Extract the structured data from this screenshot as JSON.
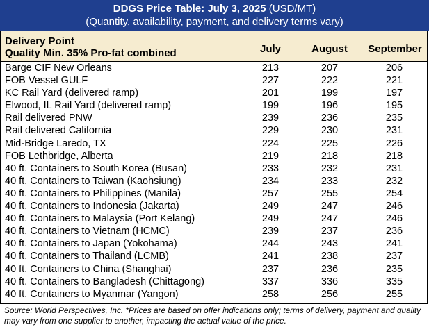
{
  "banner": {
    "title_bold": "DDGS Price Table: July 3, 2025",
    "title_rest": " (USD/MT)",
    "subtitle": "(Quantity, availability, payment, and delivery terms vary)",
    "bg_color": "#1f3f8f"
  },
  "header": {
    "delivery_point": "Delivery Point",
    "quality": "Quality Min. 35% Pro-fat combined",
    "months": [
      "July",
      "August",
      "September"
    ],
    "bg_color": "#f6ecd0"
  },
  "rows": [
    {
      "name": "Barge CIF New Orleans",
      "july": "213",
      "august": "207",
      "september": "206"
    },
    {
      "name": "FOB Vessel GULF",
      "july": "227",
      "august": "222",
      "september": "221"
    },
    {
      "name": "KC Rail Yard (delivered ramp)",
      "july": "201",
      "august": "199",
      "september": "197"
    },
    {
      "name": "Elwood, IL Rail Yard (delivered ramp)",
      "july": "199",
      "august": "196",
      "september": "195"
    },
    {
      "name": "Rail delivered PNW",
      "july": "239",
      "august": "236",
      "september": "235"
    },
    {
      "name": "Rail delivered California",
      "july": "229",
      "august": "230",
      "september": "231"
    },
    {
      "name": "Mid-Bridge Laredo, TX",
      "july": "224",
      "august": "225",
      "september": "226"
    },
    {
      "name": "FOB Lethbridge, Alberta",
      "july": "219",
      "august": "218",
      "september": "218"
    },
    {
      "name": "40 ft. Containers to South Korea (Busan)",
      "july": "233",
      "august": "232",
      "september": "231"
    },
    {
      "name": "40 ft. Containers to Taiwan (Kaohsiung)",
      "july": "234",
      "august": "233",
      "september": "232"
    },
    {
      "name": "40 ft. Containers to Philippines (Manila)",
      "july": "257",
      "august": "255",
      "september": "254"
    },
    {
      "name": "40 ft. Containers to Indonesia (Jakarta)",
      "july": "249",
      "august": "247",
      "september": "246"
    },
    {
      "name": "40 ft. Containers to Malaysia (Port Kelang)",
      "july": "249",
      "august": "247",
      "september": "246"
    },
    {
      "name": "40 ft. Containers to Vietnam (HCMC)",
      "july": "239",
      "august": "237",
      "september": "236"
    },
    {
      "name": "40 ft. Containers to Japan (Yokohama)",
      "july": "244",
      "august": "243",
      "september": "241"
    },
    {
      "name": "40 ft. Containers to Thailand (LCMB)",
      "july": "241",
      "august": "238",
      "september": "237"
    },
    {
      "name": "40 ft. Containers to China (Shanghai)",
      "july": "237",
      "august": "236",
      "september": "235"
    },
    {
      "name": "40 ft. Containers to Bangladesh (Chittagong)",
      "july": "337",
      "august": "336",
      "september": "335"
    },
    {
      "name": "40 ft. Containers to Myanmar (Yangon)",
      "july": "258",
      "august": "256",
      "september": "255"
    }
  ],
  "footnote": "Source: World Perspectives, Inc. *Prices are based on offer indications only; terms of delivery, payment and quality may vary from one supplier to another, impacting the actual value of the price."
}
